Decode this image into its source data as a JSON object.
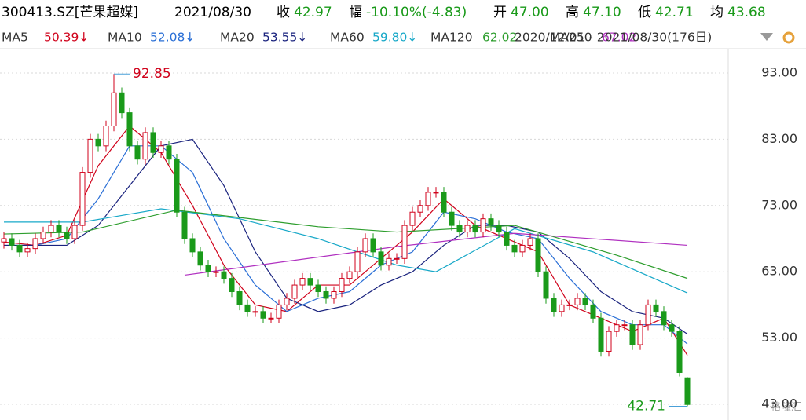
{
  "chart_data": {
    "type": "candlestick",
    "header": {
      "symbol": "300413.SZ[芒果超媒]",
      "date": "2021/08/30",
      "fields": [
        {
          "label": "收",
          "value": "42.97",
          "color": "#1a9a1a"
        },
        {
          "label": "幅",
          "value": "-10.10%(-4.83)",
          "color": "#1a9a1a"
        },
        {
          "label": "开",
          "value": "47.00",
          "color": "#1a9a1a"
        },
        {
          "label": "高",
          "value": "47.10",
          "color": "#1a9a1a"
        },
        {
          "label": "低",
          "value": "42.71",
          "color": "#1a9a1a"
        },
        {
          "label": "均",
          "value": "43.68",
          "color": "#1a9a1a"
        }
      ]
    },
    "range_label": "2020/12/01 - 2021/08/30(176日)",
    "watermark": "格隆汇",
    "up_color": "#d0021b",
    "down_color": "#1a9a1a",
    "ylim": [
      40.63,
      96.67
    ],
    "yticks": [
      {
        "value": 93,
        "label": "93.00"
      },
      {
        "value": 83,
        "label": "83.00"
      },
      {
        "value": 73,
        "label": "73.00"
      },
      {
        "value": 63,
        "label": "63.00"
      },
      {
        "value": 53,
        "label": "53.00"
      },
      {
        "value": 43,
        "label": "43.00"
      }
    ],
    "grid": true,
    "ohlc": [
      [
        67.5,
        69,
        66.5,
        68
      ],
      [
        68,
        68.8,
        66.2,
        67
      ],
      [
        67,
        67.8,
        65.2,
        66
      ],
      [
        66,
        67.3,
        65.2,
        66.5
      ],
      [
        66.5,
        68.8,
        65.7,
        68
      ],
      [
        68,
        69.8,
        67.2,
        69
      ],
      [
        69,
        70.8,
        68.2,
        70
      ],
      [
        70,
        70.8,
        68.2,
        69
      ],
      [
        69,
        69.8,
        67.2,
        68
      ],
      [
        68,
        70.8,
        67.2,
        70
      ],
      [
        70,
        78.8,
        69.2,
        78
      ],
      [
        78,
        83.8,
        77.2,
        83
      ],
      [
        83,
        83.8,
        81.2,
        82
      ],
      [
        82,
        85.8,
        81.2,
        85
      ],
      [
        85,
        92.85,
        84.2,
        90
      ],
      [
        90,
        90.8,
        86.2,
        87
      ],
      [
        87,
        87.8,
        81.2,
        82
      ],
      [
        82,
        82.8,
        79.2,
        80
      ],
      [
        80,
        84.8,
        79.2,
        84
      ],
      [
        84,
        84.8,
        80.2,
        81
      ],
      [
        81,
        82.8,
        80.2,
        82
      ],
      [
        82,
        82.8,
        79.2,
        80
      ],
      [
        80,
        80.8,
        71.2,
        72
      ],
      [
        72,
        72.8,
        67.2,
        68
      ],
      [
        68,
        68.8,
        65.2,
        66
      ],
      [
        66,
        66.8,
        63.2,
        64
      ],
      [
        64,
        64.8,
        62.2,
        63
      ],
      [
        63,
        63.8,
        62.2,
        63
      ],
      [
        63,
        63.8,
        61.2,
        62
      ],
      [
        62,
        62.8,
        59.2,
        60
      ],
      [
        60,
        60.8,
        57.2,
        58
      ],
      [
        58,
        58.8,
        56.2,
        57
      ],
      [
        57,
        57.8,
        56.2,
        57
      ],
      [
        57,
        57.8,
        55.2,
        56
      ],
      [
        56,
        56.8,
        55.2,
        56
      ],
      [
        56,
        58.8,
        55.2,
        58
      ],
      [
        58,
        59.8,
        57.2,
        59
      ],
      [
        59,
        61.8,
        58.2,
        61
      ],
      [
        61,
        62.8,
        60.2,
        62
      ],
      [
        62,
        62.8,
        60.2,
        61
      ],
      [
        61,
        61.8,
        59.2,
        60
      ],
      [
        60,
        60.8,
        58.2,
        59
      ],
      [
        59,
        60.8,
        58.2,
        60
      ],
      [
        60,
        62.8,
        59.2,
        62
      ],
      [
        62,
        63.8,
        61.2,
        63
      ],
      [
        63,
        66.8,
        62.2,
        66
      ],
      [
        66,
        68.8,
        65.2,
        68
      ],
      [
        68,
        68.8,
        65.2,
        66
      ],
      [
        66,
        66.8,
        63.2,
        64
      ],
      [
        64,
        65.8,
        63.2,
        65
      ],
      [
        65,
        65.8,
        64.2,
        65
      ],
      [
        65,
        70.8,
        64.2,
        70
      ],
      [
        70,
        72.8,
        69.2,
        72
      ],
      [
        72,
        73.8,
        71.2,
        73
      ],
      [
        73,
        75.8,
        72.2,
        75
      ],
      [
        75,
        75.8,
        74.2,
        75
      ],
      [
        75,
        75.8,
        71.2,
        72
      ],
      [
        72,
        72.8,
        69.2,
        70
      ],
      [
        70,
        70.8,
        68.2,
        69
      ],
      [
        69,
        70.8,
        68.2,
        70
      ],
      [
        70,
        70.8,
        68.2,
        69
      ],
      [
        69,
        71.8,
        68.2,
        71
      ],
      [
        71,
        71.8,
        69.2,
        70
      ],
      [
        70,
        70.8,
        68.2,
        69
      ],
      [
        69,
        69.8,
        66.2,
        67
      ],
      [
        67,
        67.8,
        65.2,
        66
      ],
      [
        66,
        67.8,
        65.2,
        67
      ],
      [
        67,
        68.8,
        66.2,
        68
      ],
      [
        68,
        68.8,
        62.2,
        63
      ],
      [
        63,
        63.8,
        58.2,
        59
      ],
      [
        59,
        59.8,
        56.2,
        57
      ],
      [
        57,
        58.8,
        56.2,
        58
      ],
      [
        58,
        58.8,
        57.2,
        58
      ],
      [
        58,
        59.8,
        57.2,
        59
      ],
      [
        59,
        59.8,
        57.2,
        58
      ],
      [
        58,
        58.8,
        55.2,
        56
      ],
      [
        56,
        56.8,
        50.2,
        51
      ],
      [
        51,
        54.8,
        50.2,
        54
      ],
      [
        54,
        55.8,
        53.2,
        55
      ],
      [
        55,
        55.8,
        54.2,
        55
      ],
      [
        55,
        55.8,
        51.2,
        52
      ],
      [
        52,
        55.8,
        51.2,
        55
      ],
      [
        55,
        58.8,
        54.2,
        58
      ],
      [
        58,
        58.8,
        56.2,
        57
      ],
      [
        57,
        57.8,
        54.2,
        55
      ],
      [
        55,
        55.8,
        53.2,
        54
      ],
      [
        54,
        54.8,
        47.2,
        47.8
      ],
      [
        47,
        47.1,
        42.71,
        42.97
      ]
    ],
    "series": [
      {
        "name": "MA5",
        "legend_value": "50.39↓",
        "color": "#d0021b",
        "x": [
          0,
          4,
          8,
          12,
          16,
          20,
          24,
          28,
          32,
          36,
          40,
          44,
          48,
          52,
          56,
          60,
          64,
          68,
          72,
          76,
          80,
          84,
          87
        ],
        "values": [
          67.5,
          67,
          68.5,
          79,
          85,
          81,
          73,
          64,
          58,
          57,
          61,
          61,
          65,
          69,
          74,
          70,
          68,
          66,
          58,
          56,
          54,
          56,
          50.4
        ]
      },
      {
        "name": "MA10",
        "legend_value": "52.08↓",
        "color": "#2a6fd6",
        "x": [
          0,
          4,
          8,
          12,
          16,
          20,
          24,
          28,
          32,
          36,
          40,
          44,
          48,
          52,
          56,
          60,
          64,
          68,
          72,
          76,
          80,
          84,
          87
        ],
        "values": [
          67,
          67,
          68,
          74,
          82,
          82,
          78,
          68,
          61,
          57,
          59,
          60,
          64,
          66,
          72,
          71,
          69,
          68,
          62,
          57,
          55,
          55,
          52.1
        ]
      },
      {
        "name": "MA20",
        "legend_value": "53.55↓",
        "color": "#1a237e",
        "x": [
          0,
          4,
          8,
          12,
          16,
          20,
          24,
          28,
          32,
          36,
          40,
          44,
          48,
          52,
          56,
          60,
          64,
          68,
          72,
          76,
          80,
          84,
          87
        ],
        "values": [
          67,
          67,
          67,
          70,
          76,
          82,
          83,
          76,
          66,
          59,
          57,
          58,
          61,
          63,
          67,
          70,
          70,
          69,
          65,
          60,
          57,
          56,
          53.6
        ]
      },
      {
        "name": "MA60",
        "legend_value": "59.80↓",
        "color": "#17a8c8",
        "x": [
          0,
          10,
          20,
          30,
          40,
          50,
          55,
          65,
          75,
          87
        ],
        "values": [
          70.5,
          70.5,
          72.5,
          71,
          68,
          64,
          63,
          69.5,
          66,
          59.8
        ]
      },
      {
        "name": "MA120",
        "legend_value": "62.02",
        "color": "#2e9e2e",
        "x": [
          0,
          10,
          22,
          40,
          50,
          65,
          78,
          87
        ],
        "values": [
          68.7,
          69,
          72.3,
          69.8,
          69,
          70,
          65.5,
          62.0
        ]
      },
      {
        "name": "MA250",
        "legend_value": "67.02",
        "color": "#b030c0",
        "x": [
          23,
          50,
          65,
          87
        ],
        "values": [
          62.5,
          66.8,
          68.8,
          67.0
        ]
      }
    ],
    "annotations": [
      {
        "text": "92.85",
        "index": 14,
        "price": 92.85,
        "color": "#d0021b"
      },
      {
        "text": "42.71",
        "index": 87,
        "price": 42.71,
        "color": "#1a9a1a"
      }
    ]
  }
}
